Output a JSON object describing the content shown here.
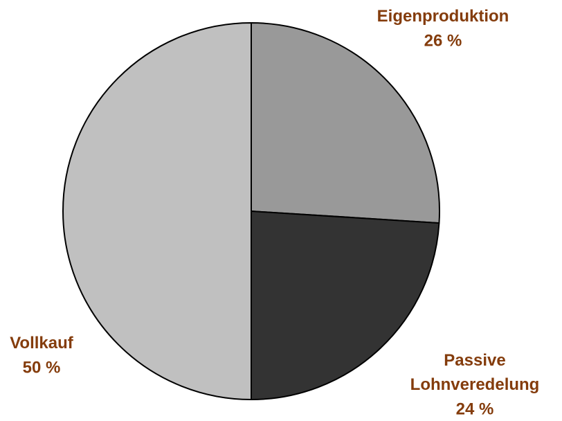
{
  "chart_data": {
    "type": "pie",
    "categories": [
      "Eigenproduktion",
      "Passive Lohnveredelung",
      "Vollkauf"
    ],
    "values": [
      26,
      24,
      50
    ],
    "value_labels": [
      "26 %",
      "24 %",
      "50 %"
    ],
    "colors": [
      "#999999",
      "#333333",
      "#c0c0c0"
    ],
    "label_color": "#843c0c"
  }
}
